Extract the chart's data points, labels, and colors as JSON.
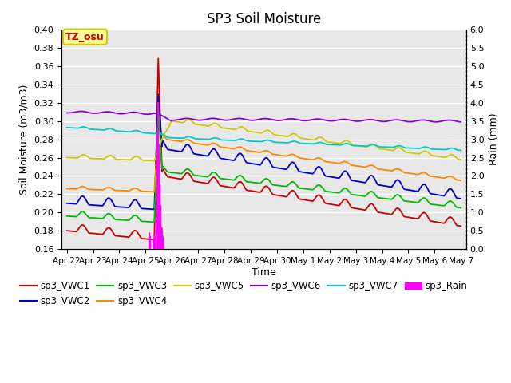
{
  "title": "SP3 Soil Moisture",
  "ylabel_left": "Soil Moisture (m3/m3)",
  "ylabel_right": "Rain (mm)",
  "xlabel": "Time",
  "ylim_left": [
    0.16,
    0.4
  ],
  "ylim_right": [
    0.0,
    6.0
  ],
  "background_color": "#e8e8e8",
  "grid_color": "#ffffff",
  "series_colors": {
    "sp3_VWC1": "#cc0000",
    "sp3_VWC2": "#0000cc",
    "sp3_VWC3": "#00bb00",
    "sp3_VWC4": "#ff8800",
    "sp3_VWC5": "#cccc00",
    "sp3_VWC6": "#8800cc",
    "sp3_VWC7": "#00cccc",
    "sp3_Rain": "#ff00ff"
  },
  "annotation_text": "TZ_osu",
  "annotation_color": "#cc0000",
  "annotation_bg": "#ffff99",
  "annotation_border": "#cccc00",
  "tick_labels": [
    "Apr 22",
    "Apr 23",
    "Apr 24",
    "Apr 25",
    "Apr 26",
    "Apr 27",
    "Apr 28",
    "Apr 29",
    "Apr 30",
    "May 1",
    "May 2",
    "May 3",
    "May 4",
    "May 5",
    "May 6",
    "May 7"
  ],
  "legend_row1": [
    "sp3_VWC1",
    "sp3_VWC2",
    "sp3_VWC3",
    "sp3_VWC4",
    "sp3_VWC5",
    "sp3_VWC6"
  ],
  "legend_row2": [
    "sp3_VWC7",
    "sp3_Rain"
  ]
}
